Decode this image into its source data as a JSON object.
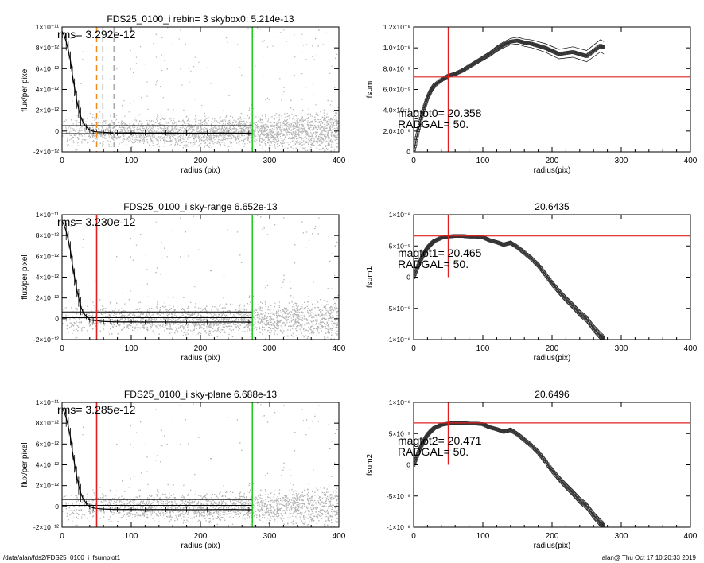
{
  "footer": {
    "path": "/data/alan/fds2/FDS25_0100_i_fsumplot1",
    "user_time": "alan@  Thu Oct 17 10:20:33 2019"
  },
  "chart_data": [
    {
      "type": "scatter",
      "title": "FDS25_0100_i rebin= 3    skybox0:  5.214e-13",
      "xlabel": "radius (pix)",
      "ylabel": "flux/per pixel",
      "xlim": [
        0,
        400
      ],
      "ylim": [
        -2e-12,
        1e-11
      ],
      "xticks": [
        "0",
        "100",
        "200",
        "300",
        "400"
      ],
      "yticks": [
        "-2×10⁻¹²",
        "0",
        "2×10⁻¹²",
        "4×10⁻¹²",
        "6×10⁻¹²",
        "8×10⁻¹²",
        "1×10⁻¹¹"
      ],
      "ytick_values": [
        -2e-12,
        0,
        2e-12,
        4e-12,
        6e-12,
        8e-12,
        1e-11
      ],
      "annotation": "rms= 3.292e-12",
      "profile_x": [
        0,
        3,
        6,
        9,
        12,
        15,
        18,
        21,
        24,
        27,
        30,
        35,
        40,
        45,
        50,
        60,
        70,
        80,
        100,
        120,
        150,
        180,
        210,
        240,
        270,
        275
      ],
      "profile_y": [
        9.6e-12,
        9.2e-12,
        8.6e-12,
        7.8e-12,
        6.8e-12,
        5.4e-12,
        4.2e-12,
        3e-12,
        2.1e-12,
        1.4e-12,
        9e-13,
        4e-13,
        1e-13,
        -2e-14,
        -8e-14,
        -1.2e-13,
        -1.5e-13,
        -1.8e-13,
        -1.6e-13,
        -1.9e-13,
        -1.7e-13,
        -2e-13,
        -1.9e-13,
        -1.8e-13,
        -2e-13,
        -1.9e-13
      ],
      "hlines": [
        5.2e-13,
        -2.4e-13
      ],
      "vlines": [
        {
          "x": 50,
          "color": "#f08a1c",
          "style": "dashed"
        },
        {
          "x": 59,
          "color": "#aaaaaa",
          "style": "dashed"
        },
        {
          "x": 75,
          "color": "#aaaaaa",
          "style": "dashed"
        },
        {
          "x": 275,
          "color": "#22cc22",
          "style": "solid"
        }
      ],
      "scatter_color": "#b4b4b4"
    },
    {
      "type": "line",
      "title": "",
      "xlabel": "radius(pix)",
      "ylabel": "fsum",
      "xlim": [
        0,
        400
      ],
      "ylim": [
        0,
        1.2e-08
      ],
      "xticks": [
        "0",
        "100",
        "200",
        "300",
        "400"
      ],
      "yticks": [
        "0",
        "2.0×10⁻⁹",
        "4.0×10⁻⁹",
        "6.0×10⁻⁹",
        "8.0×10⁻⁹",
        "1.0×10⁻⁸",
        "1.2×10⁻⁸"
      ],
      "ytick_values": [
        0,
        2e-09,
        4e-09,
        6e-09,
        8e-09,
        1e-08,
        1.2e-08
      ],
      "annotations": [
        "magtot0=  20.358",
        "RADGAL=     50."
      ],
      "x": [
        0,
        5,
        10,
        15,
        20,
        25,
        30,
        40,
        50,
        60,
        70,
        80,
        90,
        100,
        110,
        120,
        130,
        140,
        150,
        160,
        170,
        180,
        190,
        200,
        210,
        220,
        230,
        240,
        250,
        260,
        270,
        275
      ],
      "y": [
        0,
        1.6e-09,
        3e-09,
        4.2e-09,
        5.2e-09,
        5.9e-09,
        6.4e-09,
        6.9e-09,
        7.3e-09,
        7.5e-09,
        7.8e-09,
        8.2e-09,
        8.6e-09,
        9e-09,
        9.4e-09,
        9.9e-09,
        1.03e-08,
        1.06e-08,
        1.07e-08,
        1.05e-08,
        1.04e-08,
        1.02e-08,
        1e-08,
        9.7e-09,
        9.4e-09,
        9.5e-09,
        9.6e-09,
        9.4e-09,
        9.2e-09,
        9.7e-09,
        1.02e-08,
        1e-08
      ],
      "band": 6e-10,
      "hline": 7.2e-09,
      "vline": 50
    },
    {
      "type": "scatter",
      "title": "FDS25_0100_i sky-range  6.652e-13",
      "xlabel": "radius (pix)",
      "ylabel": "flux/per pixel",
      "xlim": [
        0,
        400
      ],
      "ylim": [
        -2e-12,
        1e-11
      ],
      "xticks": [
        "0",
        "100",
        "200",
        "300",
        "400"
      ],
      "yticks": [
        "-2×10⁻¹²",
        "0",
        "2×10⁻¹²",
        "4×10⁻¹²",
        "6×10⁻¹²",
        "8×10⁻¹²",
        "1×10⁻¹¹"
      ],
      "ytick_values": [
        -2e-12,
        0,
        2e-12,
        4e-12,
        6e-12,
        8e-12,
        1e-11
      ],
      "annotation": "rms= 3.230e-12",
      "profile_x": [
        0,
        3,
        6,
        9,
        12,
        15,
        18,
        21,
        24,
        27,
        30,
        35,
        40,
        45,
        50,
        60,
        70,
        80,
        100,
        120,
        150,
        180,
        210,
        240,
        270,
        275
      ],
      "profile_y": [
        9.4e-12,
        9e-12,
        8.4e-12,
        7.6e-12,
        6.6e-12,
        5.2e-12,
        4e-12,
        2.9e-12,
        2e-12,
        1.2e-12,
        7e-13,
        2e-13,
        -1e-13,
        -1.6e-13,
        -2e-13,
        -2.6e-13,
        -2.9e-13,
        -3.1e-13,
        -3e-13,
        -3.2e-13,
        -3.1e-13,
        -3.3e-13,
        -3.2e-13,
        -3.1e-13,
        -3.3e-13,
        -3.2e-13
      ],
      "hlines": [
        6.6e-13,
        1e-13
      ],
      "vlines": [
        {
          "x": 50,
          "color": "#e02020",
          "style": "solid"
        },
        {
          "x": 275,
          "color": "#22cc22",
          "style": "solid"
        }
      ],
      "scatter_color": "#b4b4b4"
    },
    {
      "type": "line",
      "title": "20.6435",
      "xlabel": "radius(pix)",
      "ylabel": "fsum1",
      "xlim": [
        0,
        400
      ],
      "ylim": [
        -1e-08,
        1e-08
      ],
      "xticks": [
        "0",
        "100",
        "200",
        "300",
        "400"
      ],
      "yticks": [
        "-1×10⁻⁸",
        "-5×10⁻⁹",
        "0",
        "5×10⁻⁹",
        "1×10⁻⁸"
      ],
      "ytick_values": [
        -1e-08,
        -5e-09,
        0,
        5e-09,
        1e-08
      ],
      "annotations": [
        "magtot1=  20.465",
        "RADGAL=     50."
      ],
      "x": [
        0,
        5,
        10,
        15,
        20,
        25,
        30,
        40,
        50,
        60,
        70,
        80,
        90,
        100,
        110,
        120,
        130,
        140,
        150,
        160,
        170,
        180,
        190,
        200,
        210,
        220,
        230,
        240,
        250,
        260,
        270,
        275
      ],
      "y": [
        0,
        1.4e-09,
        2.7e-09,
        3.8e-09,
        4.7e-09,
        5.3e-09,
        5.8e-09,
        6.3e-09,
        6.5e-09,
        6.6e-09,
        6.6e-09,
        6.5e-09,
        6.5e-09,
        6.4e-09,
        5.9e-09,
        5.6e-09,
        5.2e-09,
        5.5e-09,
        4.8e-09,
        3.9e-09,
        3e-09,
        1.9e-09,
        5e-10,
        -1e-09,
        -2.3e-09,
        -3.5e-09,
        -4.6e-09,
        -5.8e-09,
        -6.7e-09,
        -8.2e-09,
        -9.4e-09,
        -9.9e-09
      ],
      "band": 6e-10,
      "hline": 6.6e-09,
      "vline": 50
    },
    {
      "type": "scatter",
      "title": "FDS25_0100_i sky-plane  6.688e-13",
      "xlabel": "radius (pix)",
      "ylabel": "flux/per pixel",
      "xlim": [
        0,
        400
      ],
      "ylim": [
        -2e-12,
        1e-11
      ],
      "xticks": [
        "0",
        "100",
        "200",
        "300",
        "400"
      ],
      "yticks": [
        "-2×10⁻¹²",
        "0",
        "2×10⁻¹²",
        "4×10⁻¹²",
        "6×10⁻¹²",
        "8×10⁻¹²",
        "1×10⁻¹¹"
      ],
      "ytick_values": [
        -2e-12,
        0,
        2e-12,
        4e-12,
        6e-12,
        8e-12,
        1e-11
      ],
      "annotation": "rms= 3.285e-12",
      "profile_x": [
        0,
        3,
        6,
        9,
        12,
        15,
        18,
        21,
        24,
        27,
        30,
        35,
        40,
        45,
        50,
        60,
        70,
        80,
        100,
        120,
        150,
        180,
        210,
        240,
        270,
        275
      ],
      "profile_y": [
        9.5e-12,
        9.1e-12,
        8.5e-12,
        7.7e-12,
        6.7e-12,
        5.3e-12,
        4.1e-12,
        3e-12,
        2e-12,
        1.3e-12,
        8e-13,
        3e-13,
        0,
        -1.4e-13,
        -2e-13,
        -2.5e-13,
        -2.8e-13,
        -3e-13,
        -2.9e-13,
        -3.1e-13,
        -3e-13,
        -3.2e-13,
        -3.1e-13,
        -3e-13,
        -3.2e-13,
        -3.1e-13
      ],
      "hlines": [
        6.7e-13,
        1e-13
      ],
      "vlines": [
        {
          "x": 50,
          "color": "#e02020",
          "style": "solid"
        },
        {
          "x": 275,
          "color": "#22cc22",
          "style": "solid"
        }
      ],
      "scatter_color": "#b4b4b4"
    },
    {
      "type": "line",
      "title": "20.6496",
      "xlabel": "radius(pix)",
      "ylabel": "fsum2",
      "xlim": [
        0,
        400
      ],
      "ylim": [
        -1e-08,
        1e-08
      ],
      "xticks": [
        "0",
        "100",
        "200",
        "300",
        "400"
      ],
      "yticks": [
        "-1×10⁻⁸",
        "-5×10⁻⁹",
        "0",
        "5×10⁻⁹",
        "1×10⁻⁸"
      ],
      "ytick_values": [
        -1e-08,
        -5e-09,
        0,
        5e-09,
        1e-08
      ],
      "annotations": [
        "magtot2=  20.471",
        "RADGAL=     50."
      ],
      "x": [
        0,
        5,
        10,
        15,
        20,
        25,
        30,
        40,
        50,
        60,
        70,
        80,
        90,
        100,
        110,
        120,
        130,
        140,
        150,
        160,
        170,
        180,
        190,
        200,
        210,
        220,
        230,
        240,
        250,
        260,
        270,
        275
      ],
      "y": [
        0,
        1.4e-09,
        2.8e-09,
        3.9e-09,
        4.8e-09,
        5.4e-09,
        5.9e-09,
        6.4e-09,
        6.6e-09,
        6.7e-09,
        6.7e-09,
        6.6e-09,
        6.6e-09,
        6.5e-09,
        6e-09,
        5.7e-09,
        5.3e-09,
        5.6e-09,
        4.9e-09,
        4e-09,
        3.1e-09,
        2e-09,
        6e-10,
        -9e-10,
        -2.2e-09,
        -3.4e-09,
        -4.5e-09,
        -5.7e-09,
        -6.6e-09,
        -8.1e-09,
        -9.3e-09,
        -9.8e-09
      ],
      "band": 6e-10,
      "hline": 6.7e-09,
      "vline": 50
    }
  ]
}
